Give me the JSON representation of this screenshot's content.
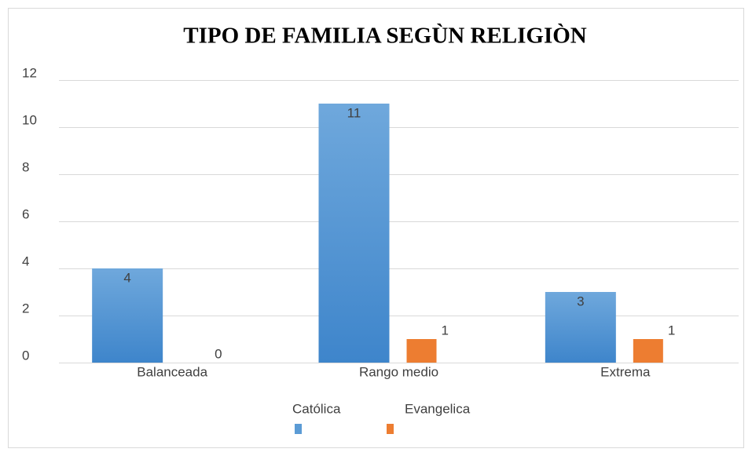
{
  "chart_data": {
    "type": "bar",
    "title": "TIPO DE FAMILIA SEGÙN RELIGIÒN",
    "categories": [
      "Balanceada",
      "Rango medio",
      "Extrema"
    ],
    "series": [
      {
        "name": "Católica",
        "color": "#5b9bd5",
        "values": [
          4,
          11,
          3
        ]
      },
      {
        "name": "Evangelica",
        "color": "#ed7d31",
        "values": [
          0,
          1,
          1
        ]
      }
    ],
    "ylim": [
      0,
      12
    ],
    "yticks": [
      0,
      2,
      4,
      6,
      8,
      10,
      12
    ],
    "grid": true,
    "legend": "bottom"
  }
}
